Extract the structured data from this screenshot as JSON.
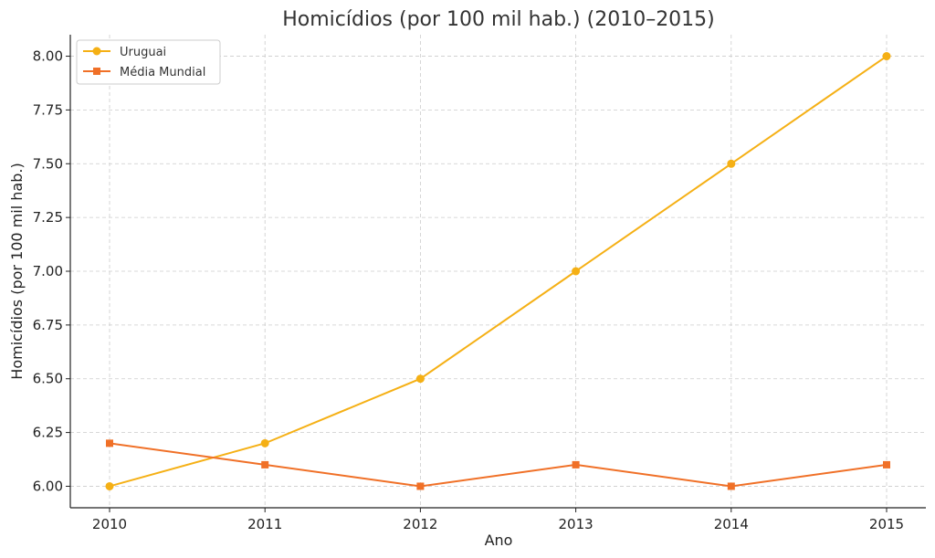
{
  "chart_data": {
    "type": "line",
    "title": "Homicídios (por 100 mil hab.) (2010–2015)",
    "xlabel": "Ano",
    "ylabel": "Homicídios (por 100 mil hab.)",
    "x": [
      2010,
      2011,
      2012,
      2013,
      2014,
      2015
    ],
    "x_tick_labels": [
      "2010",
      "2011",
      "2012",
      "2013",
      "2014",
      "2015"
    ],
    "ylim": [
      5.9,
      8.1
    ],
    "y_ticks": [
      6.0,
      6.25,
      6.5,
      6.75,
      7.0,
      7.25,
      7.5,
      7.75,
      8.0
    ],
    "y_tick_labels": [
      "6.00",
      "6.25",
      "6.50",
      "6.75",
      "7.00",
      "7.25",
      "7.50",
      "7.75",
      "8.00"
    ],
    "grid": true,
    "legend_position": "top-left",
    "series": [
      {
        "name": "Uruguai",
        "values": [
          6.0,
          6.2,
          6.5,
          7.0,
          7.5,
          8.0
        ],
        "color": "#F5B015",
        "marker": "circle"
      },
      {
        "name": "Média Mundial",
        "values": [
          6.2,
          6.1,
          6.0,
          6.1,
          6.0,
          6.1
        ],
        "color": "#F07027",
        "marker": "square"
      }
    ]
  }
}
